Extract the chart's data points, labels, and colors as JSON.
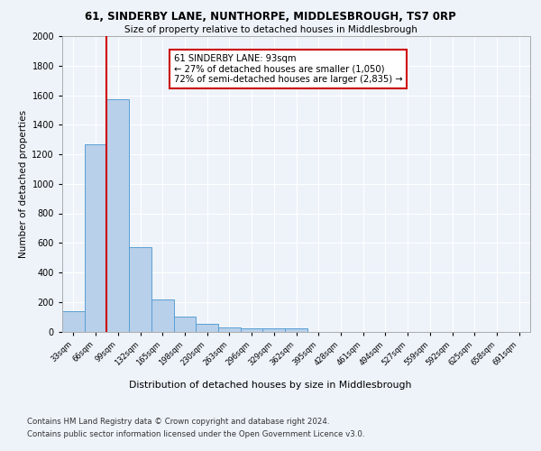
{
  "title": "61, SINDERBY LANE, NUNTHORPE, MIDDLESBROUGH, TS7 0RP",
  "subtitle": "Size of property relative to detached houses in Middlesbrough",
  "xlabel": "Distribution of detached houses by size in Middlesbrough",
  "ylabel": "Number of detached properties",
  "bin_labels": [
    "33sqm",
    "66sqm",
    "99sqm",
    "132sqm",
    "165sqm",
    "198sqm",
    "230sqm",
    "263sqm",
    "296sqm",
    "329sqm",
    "362sqm",
    "395sqm",
    "428sqm",
    "461sqm",
    "494sqm",
    "527sqm",
    "559sqm",
    "592sqm",
    "625sqm",
    "658sqm",
    "691sqm"
  ],
  "bar_values": [
    140,
    1265,
    1570,
    570,
    215,
    100,
    50,
    30,
    20,
    20,
    20,
    0,
    0,
    0,
    0,
    0,
    0,
    0,
    0,
    0,
    0
  ],
  "bar_color": "#b8d0ea",
  "bar_edge_color": "#5a9fd4",
  "vline_color": "#cc0000",
  "annotation_text": "61 SINDERBY LANE: 93sqm\n← 27% of detached houses are smaller (1,050)\n72% of semi-detached houses are larger (2,835) →",
  "annotation_box_color": "#ffffff",
  "annotation_box_edge": "#cc0000",
  "ylim": [
    0,
    2000
  ],
  "yticks": [
    0,
    200,
    400,
    600,
    800,
    1000,
    1200,
    1400,
    1600,
    1800,
    2000
  ],
  "footer_line1": "Contains HM Land Registry data © Crown copyright and database right 2024.",
  "footer_line2": "Contains public sector information licensed under the Open Government Licence v3.0.",
  "bg_color": "#eef3fa",
  "plot_bg_color": "#eef3fa",
  "grid_color": "#ffffff"
}
